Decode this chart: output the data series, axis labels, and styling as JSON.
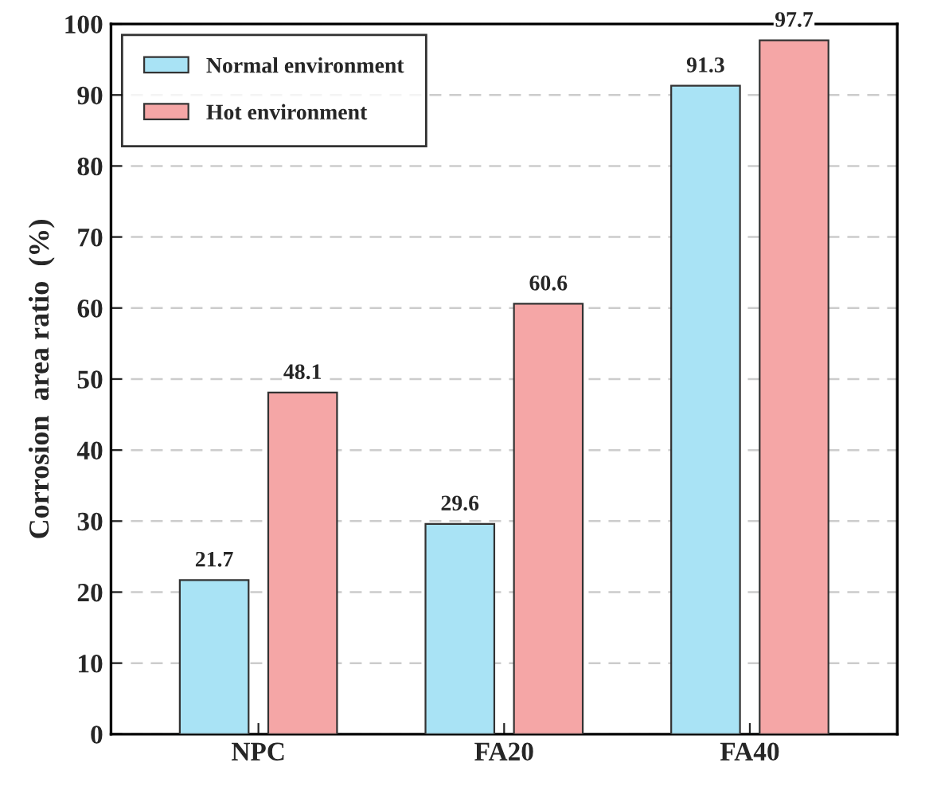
{
  "chart_data": {
    "type": "bar",
    "ylabel": "Corrosion  area ratio  (%)",
    "categories": [
      "NPC",
      "FA20",
      "FA40"
    ],
    "series": [
      {
        "name": "Normal environment",
        "color": "#a9e3f5",
        "values": [
          21.7,
          29.6,
          91.3
        ]
      },
      {
        "name": "Hot environment",
        "color": "#f5a6a6",
        "values": [
          48.1,
          60.6,
          97.7
        ]
      }
    ],
    "ylim": [
      0,
      100
    ],
    "yticks": [
      0,
      10,
      20,
      30,
      40,
      50,
      60,
      70,
      80,
      90,
      100
    ],
    "grid": "y",
    "legend": "top left",
    "data_labels": true
  }
}
